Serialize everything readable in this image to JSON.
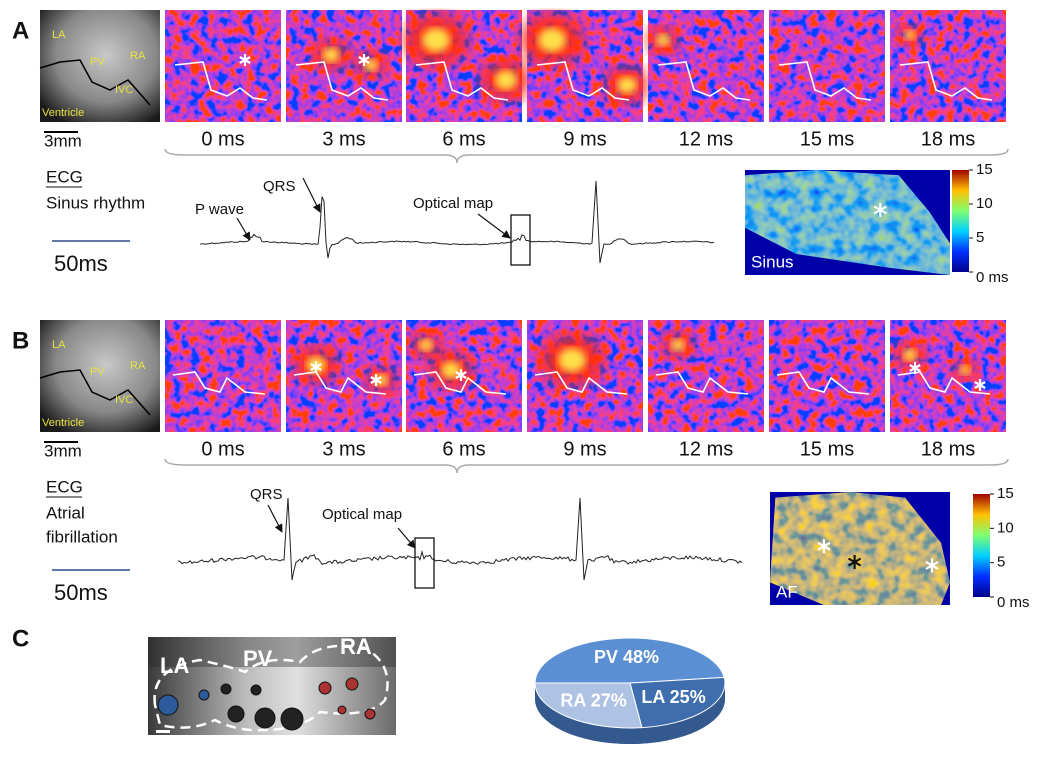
{
  "panels": [
    {
      "letter": "A",
      "anatomy_labels": [
        "LA",
        "PV",
        "RA",
        "IVC",
        "Ventricle"
      ],
      "scale_bar": "3mm",
      "frame_times": [
        "0 ms",
        "3 ms",
        "6 ms",
        "9 ms",
        "12 ms",
        "15 ms",
        "18 ms"
      ],
      "ecg": {
        "title": "ECG",
        "rhythm": [
          "Sinus rhythm"
        ],
        "scale": "50ms",
        "annotations": [
          "P wave",
          "QRS",
          "Optical map"
        ]
      },
      "activation_map": {
        "label": "Sinus",
        "colorbar_lim": [
          0,
          15
        ],
        "colorbar_ticks": [
          {
            "value": 0,
            "label": "0 ms"
          },
          5,
          10,
          15
        ]
      }
    },
    {
      "letter": "B",
      "anatomy_labels": [
        "LA",
        "PV",
        "RA",
        "IVC",
        "Ventricle"
      ],
      "scale_bar": "3mm",
      "frame_times": [
        "0 ms",
        "3 ms",
        "6 ms",
        "9 ms",
        "12 ms",
        "15 ms",
        "18 ms"
      ],
      "ecg": {
        "title": "ECG",
        "rhythm": [
          "Atrial",
          "fibrillation"
        ],
        "scale": "50ms",
        "annotations": [
          "QRS",
          "Optical map"
        ]
      },
      "activation_map": {
        "label": "AF",
        "colorbar_lim": [
          0,
          15
        ],
        "colorbar_ticks": [
          {
            "value": 0,
            "label": "0 ms"
          },
          5,
          10,
          15
        ]
      }
    }
  ],
  "panel_c": {
    "letter": "C",
    "image_labels": [
      "LA",
      "PV",
      "RA"
    ],
    "pie": {
      "type": "pie",
      "categories": [
        "PV",
        "LA",
        "RA"
      ],
      "values": [
        48,
        25,
        27
      ],
      "value_labels": [
        "PV 48%",
        "LA 25%",
        "RA 27%"
      ],
      "colors": [
        "#5b8fd3",
        "#3f6eae",
        "#aec3e3"
      ]
    }
  }
}
